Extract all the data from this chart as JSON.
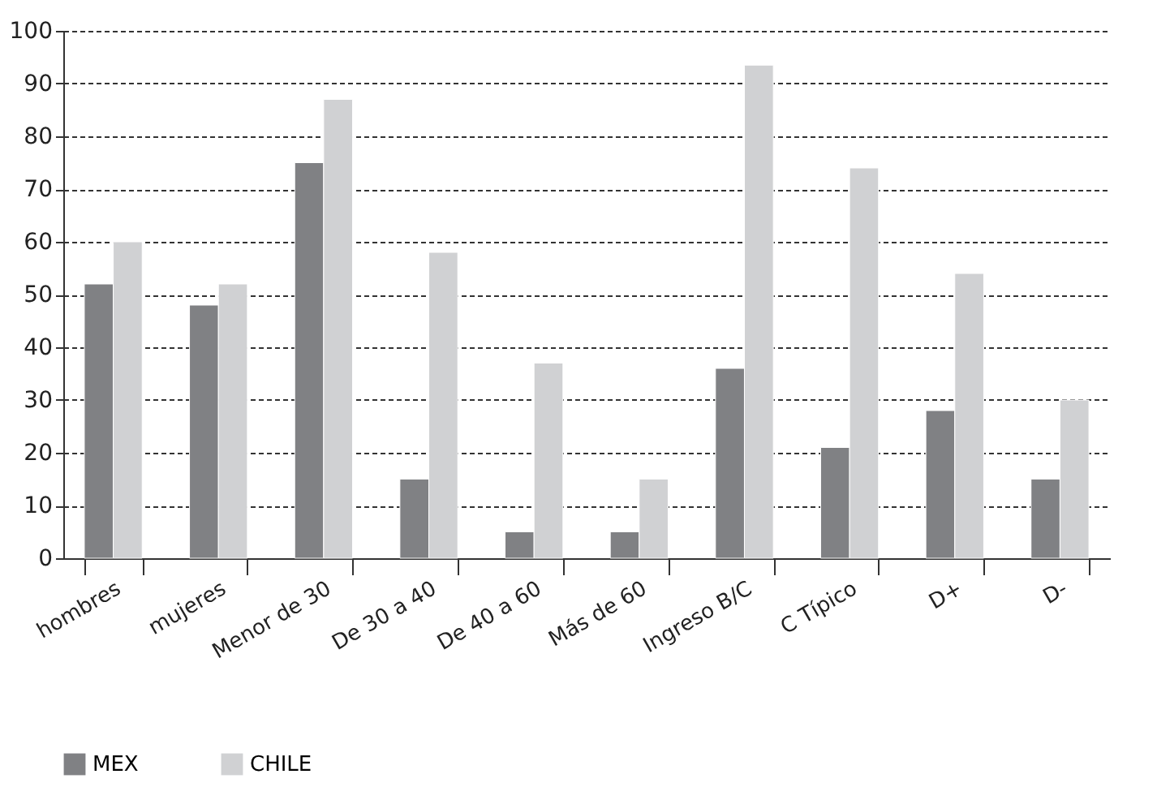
{
  "chart_data": {
    "type": "bar",
    "categories": [
      "hombres",
      "mujeres",
      "Menor de 30",
      "De 30 a 40",
      "De 40 a 60",
      "Más de 60",
      "Ingreso B/C",
      "C Típico",
      "D+",
      "D-"
    ],
    "series": [
      {
        "name": "MEX",
        "color": "#808184",
        "values": [
          52,
          48,
          75,
          15,
          5,
          5,
          36,
          21,
          28,
          15
        ]
      },
      {
        "name": "CHILE",
        "color": "#d0d1d3",
        "values": [
          60,
          52,
          87,
          58,
          37,
          15,
          93.5,
          74,
          54,
          30
        ]
      }
    ],
    "ylim": [
      0,
      100
    ],
    "yticks": [
      0,
      10,
      20,
      30,
      40,
      50,
      60,
      70,
      80,
      90,
      100
    ],
    "grid": "y",
    "legend": "bottom"
  }
}
